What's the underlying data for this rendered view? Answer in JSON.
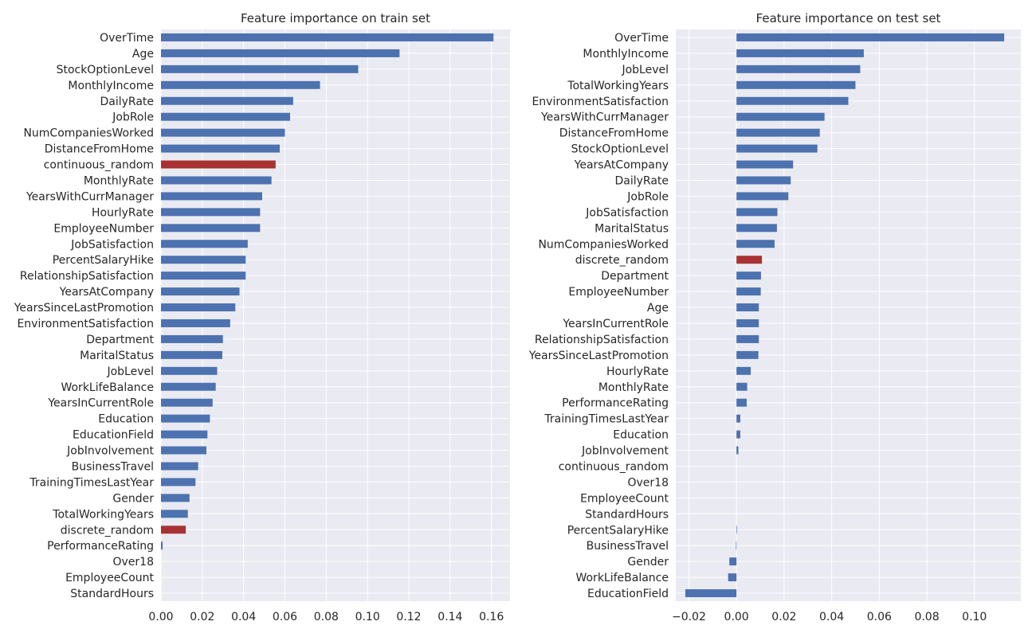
{
  "chart_data": [
    {
      "type": "bar",
      "orientation": "horizontal",
      "title": "Feature importance on train set",
      "xlabel": "",
      "ylabel": "",
      "xlim": [
        0.0,
        0.169
      ],
      "xticks": [
        "0.00",
        "0.02",
        "0.04",
        "0.06",
        "0.08",
        "0.10",
        "0.12",
        "0.14",
        "0.16"
      ],
      "xtick_values": [
        0.0,
        0.02,
        0.04,
        0.06,
        0.08,
        0.1,
        0.12,
        0.14,
        0.16
      ],
      "grid": true,
      "colors": {
        "default": "#4c72b0",
        "highlight": "#a83232",
        "background": "#eaeaf2"
      },
      "highlight": [
        "continuous_random",
        "discrete_random"
      ],
      "categories": [
        "OverTime",
        "Age",
        "StockOptionLevel",
        "MonthlyIncome",
        "DailyRate",
        "JobRole",
        "NumCompaniesWorked",
        "DistanceFromHome",
        "continuous_random",
        "MonthlyRate",
        "YearsWithCurrManager",
        "HourlyRate",
        "EmployeeNumber",
        "JobSatisfaction",
        "PercentSalaryHike",
        "RelationshipSatisfaction",
        "YearsAtCompany",
        "YearsSinceLastPromotion",
        "EnvironmentSatisfaction",
        "Department",
        "MaritalStatus",
        "JobLevel",
        "WorkLifeBalance",
        "YearsInCurrentRole",
        "Education",
        "EducationField",
        "JobInvolvement",
        "BusinessTravel",
        "TrainingTimesLastYear",
        "Gender",
        "TotalWorkingYears",
        "discrete_random",
        "PerformanceRating",
        "Over18",
        "EmployeeCount",
        "StandardHours"
      ],
      "values": [
        0.161,
        0.1155,
        0.0955,
        0.077,
        0.064,
        0.0625,
        0.06,
        0.0575,
        0.0555,
        0.0535,
        0.049,
        0.048,
        0.048,
        0.042,
        0.041,
        0.041,
        0.038,
        0.036,
        0.0335,
        0.03,
        0.0297,
        0.0272,
        0.0265,
        0.025,
        0.0237,
        0.0225,
        0.022,
        0.018,
        0.0167,
        0.0138,
        0.013,
        0.012,
        0.0008,
        0.0,
        0.0,
        0.0
      ]
    },
    {
      "type": "bar",
      "orientation": "horizontal",
      "title": "Feature importance on test set",
      "xlabel": "",
      "ylabel": "",
      "xlim": [
        -0.0255,
        0.1195
      ],
      "xticks": [
        "−0.02",
        "0.00",
        "0.02",
        "0.04",
        "0.06",
        "0.08",
        "0.10"
      ],
      "xtick_values": [
        -0.02,
        0.0,
        0.02,
        0.04,
        0.06,
        0.08,
        0.1
      ],
      "grid": true,
      "colors": {
        "default": "#4c72b0",
        "highlight": "#a83232",
        "background": "#eaeaf2"
      },
      "highlight": [
        "continuous_random",
        "discrete_random"
      ],
      "categories": [
        "OverTime",
        "MonthlyIncome",
        "JobLevel",
        "TotalWorkingYears",
        "EnvironmentSatisfaction",
        "YearsWithCurrManager",
        "DistanceFromHome",
        "StockOptionLevel",
        "YearsAtCompany",
        "DailyRate",
        "JobRole",
        "JobSatisfaction",
        "MaritalStatus",
        "NumCompaniesWorked",
        "discrete_random",
        "Department",
        "EmployeeNumber",
        "Age",
        "YearsInCurrentRole",
        "RelationshipSatisfaction",
        "YearsSinceLastPromotion",
        "HourlyRate",
        "MonthlyRate",
        "PerformanceRating",
        "TrainingTimesLastYear",
        "Education",
        "JobInvolvement",
        "continuous_random",
        "Over18",
        "EmployeeCount",
        "StandardHours",
        "PercentSalaryHike",
        "BusinessTravel",
        "Gender",
        "WorkLifeBalance",
        "EducationField"
      ],
      "values": [
        0.1125,
        0.0535,
        0.052,
        0.05,
        0.047,
        0.037,
        0.035,
        0.034,
        0.0238,
        0.0228,
        0.0218,
        0.0172,
        0.017,
        0.016,
        0.0107,
        0.0103,
        0.0102,
        0.0094,
        0.0094,
        0.0094,
        0.0092,
        0.006,
        0.0045,
        0.0043,
        0.0016,
        0.0016,
        0.0008,
        0.0,
        0.0,
        0.0,
        0.0,
        0.0002,
        -0.0002,
        -0.003,
        -0.0035,
        -0.0215
      ]
    }
  ]
}
